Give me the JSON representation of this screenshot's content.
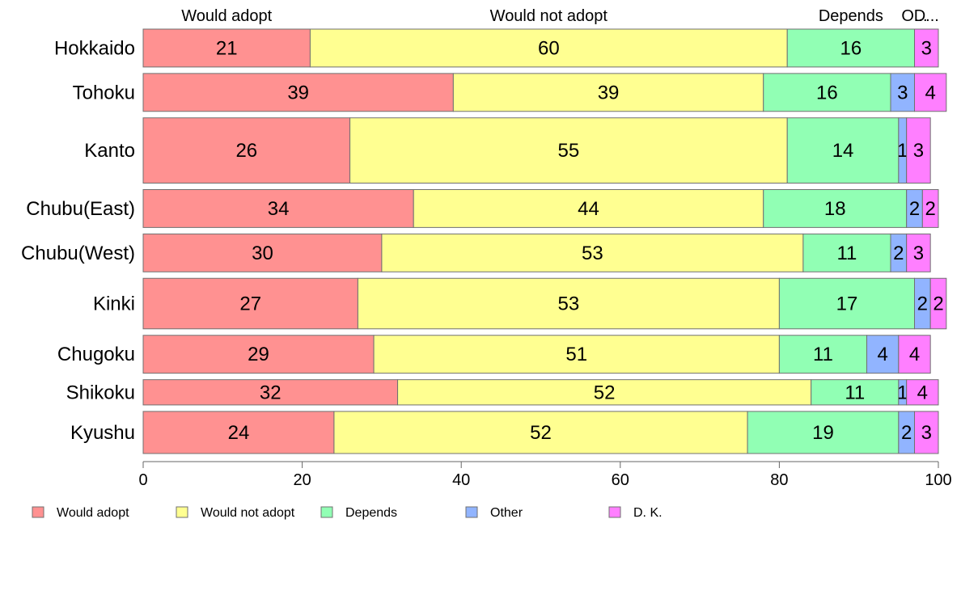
{
  "chart_data": {
    "type": "bar",
    "orientation": "horizontal",
    "stacked": true,
    "categories": [
      "Hokkaido",
      "Tohoku",
      "Kanto",
      "Chubu(East)",
      "Chubu(West)",
      "Kinki",
      "Chugoku",
      "Shikoku",
      "Kyushu"
    ],
    "series": [
      {
        "name": "Would adopt",
        "color": "#ff9191",
        "values": [
          21,
          39,
          26,
          34,
          30,
          27,
          29,
          32,
          24
        ]
      },
      {
        "name": "Would not adopt",
        "color": "#ffff91",
        "values": [
          60,
          39,
          55,
          44,
          53,
          53,
          51,
          52,
          52
        ]
      },
      {
        "name": "Depends",
        "color": "#91ffb4",
        "values": [
          16,
          16,
          14,
          18,
          11,
          17,
          11,
          11,
          19
        ]
      },
      {
        "name": "Other",
        "color": "#91b4ff",
        "values": [
          0,
          3,
          1,
          2,
          2,
          2,
          4,
          1,
          2
        ]
      },
      {
        "name": "D. K.",
        "color": "#ff7fff",
        "values": [
          3,
          4,
          3,
          2,
          3,
          2,
          4,
          4,
          3
        ]
      }
    ],
    "top_labels": [
      "Would adopt",
      "Would not adopt",
      "Depends",
      "O...",
      "D..."
    ],
    "bar_weights": [
      0.9,
      0.9,
      1.55,
      0.9,
      0.9,
      1.2,
      0.9,
      0.6,
      1.0
    ],
    "xlim": [
      0,
      100
    ],
    "xticks": [
      0,
      20,
      40,
      60,
      80,
      100
    ],
    "grid": false,
    "legend": {
      "position": "bottom-left"
    },
    "title": "",
    "xlabel": "",
    "ylabel": ""
  }
}
